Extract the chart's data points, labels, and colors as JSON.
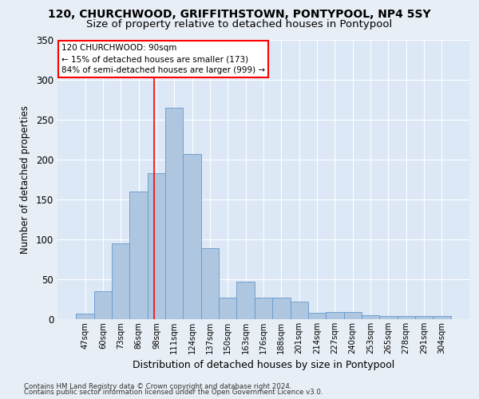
{
  "title1": "120, CHURCHWOOD, GRIFFITHSTOWN, PONTYPOOL, NP4 5SY",
  "title2": "Size of property relative to detached houses in Pontypool",
  "xlabel": "Distribution of detached houses by size in Pontypool",
  "ylabel": "Number of detached properties",
  "bar_labels": [
    "47sqm",
    "60sqm",
    "73sqm",
    "86sqm",
    "98sqm",
    "111sqm",
    "124sqm",
    "137sqm",
    "150sqm",
    "163sqm",
    "176sqm",
    "188sqm",
    "201sqm",
    "214sqm",
    "227sqm",
    "240sqm",
    "253sqm",
    "265sqm",
    "278sqm",
    "291sqm",
    "304sqm"
  ],
  "bar_values": [
    7,
    35,
    95,
    160,
    183,
    265,
    207,
    89,
    27,
    47,
    27,
    27,
    22,
    8,
    9,
    9,
    5,
    4,
    4,
    4,
    4
  ],
  "bar_color": "#aec6e0",
  "bar_edge_color": "#6699cc",
  "vline_x": 3.85,
  "vline_color": "red",
  "annotation_text": "120 CHURCHWOOD: 90sqm\n← 15% of detached houses are smaller (173)\n84% of semi-detached houses are larger (999) →",
  "annotation_box_color": "white",
  "annotation_box_edge": "red",
  "bg_color": "#e8eef5",
  "plot_bg_color": "#dce8f5",
  "grid_color": "white",
  "footnote1": "Contains HM Land Registry data © Crown copyright and database right 2024.",
  "footnote2": "Contains public sector information licensed under the Open Government Licence v3.0.",
  "ylim": [
    0,
    350
  ],
  "title1_fontsize": 10,
  "title2_fontsize": 9.5
}
